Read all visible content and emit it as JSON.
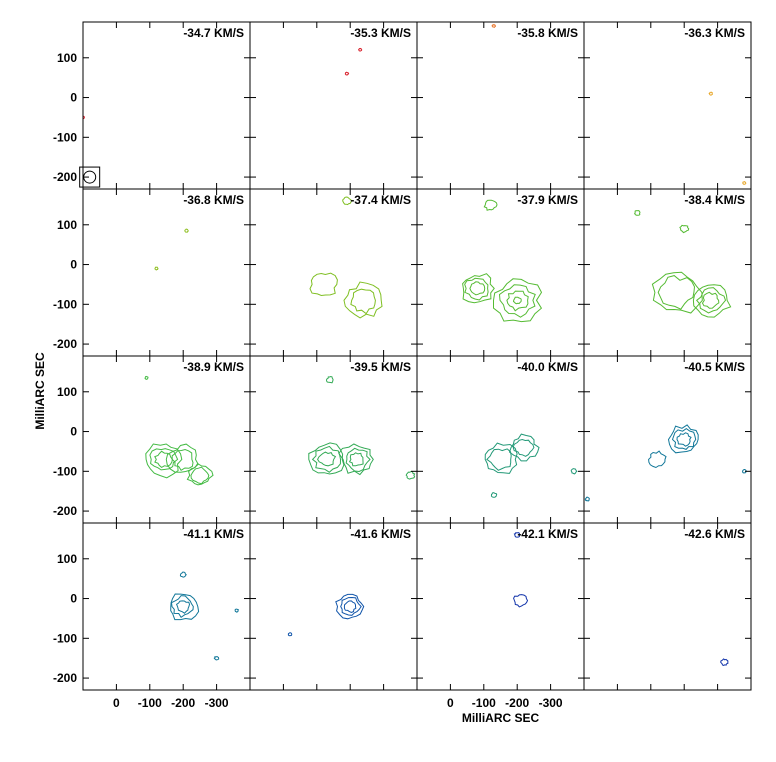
{
  "chart_data": {
    "type": "contour",
    "title": "",
    "xlabel": "MilliARC SEC",
    "ylabel": "MilliARC SEC",
    "xlim": [
      100,
      -400
    ],
    "ylim": [
      -230,
      190
    ],
    "xticks": [
      0,
      -100,
      -200,
      -300
    ],
    "xtick_labels": [
      "0",
      "-100",
      "-200",
      "-300"
    ],
    "yticks": [
      100,
      0,
      -100,
      -200
    ],
    "ytick_labels": [
      "100",
      "0",
      "-100",
      "-200"
    ],
    "grid": false,
    "legend": "none",
    "beam": {
      "x": 80,
      "y": -200,
      "size": 30
    },
    "panels": [
      {
        "velocity": "-34.7 KM/S",
        "color": "#d9232e",
        "features": [
          {
            "x": 100,
            "y": -50,
            "r": 4,
            "levels": 1
          }
        ]
      },
      {
        "velocity": "-35.3 KM/S",
        "color": "#d9232e",
        "features": [
          {
            "x": -190,
            "y": 60,
            "r": 4,
            "levels": 1
          },
          {
            "x": -230,
            "y": 120,
            "r": 3,
            "levels": 1
          }
        ]
      },
      {
        "velocity": "-35.8 KM/S",
        "color": "#e8762c",
        "features": [
          {
            "x": -130,
            "y": 180,
            "r": 3,
            "levels": 1
          }
        ]
      },
      {
        "velocity": "-36.3 KM/S",
        "color": "#e8a82c",
        "features": [
          {
            "x": -280,
            "y": 10,
            "r": 4,
            "levels": 1
          },
          {
            "x": -380,
            "y": -215,
            "r": 4,
            "levels": 1
          }
        ]
      },
      {
        "velocity": "-36.8 KM/S",
        "color": "#8fbf22",
        "features": [
          {
            "x": -210,
            "y": 85,
            "r": 5,
            "levels": 1
          },
          {
            "x": -120,
            "y": -10,
            "r": 3,
            "levels": 1
          }
        ]
      },
      {
        "velocity": "-37.4 KM/S",
        "color": "#7fbf22",
        "features": [
          {
            "x": -120,
            "y": -50,
            "r": 40,
            "levels": 1
          },
          {
            "x": -240,
            "y": -90,
            "r": 55,
            "levels": 2
          },
          {
            "x": -190,
            "y": 160,
            "r": 12,
            "levels": 1
          }
        ]
      },
      {
        "velocity": "-37.9 KM/S",
        "color": "#55bb33",
        "features": [
          {
            "x": -80,
            "y": -60,
            "r": 50,
            "levels": 3
          },
          {
            "x": -200,
            "y": -90,
            "r": 70,
            "levels": 4
          },
          {
            "x": -120,
            "y": 150,
            "r": 18,
            "levels": 1
          },
          {
            "x": -260,
            "y": 200,
            "r": 12,
            "levels": 1
          }
        ]
      },
      {
        "velocity": "-38.4 KM/S",
        "color": "#55bb33",
        "features": [
          {
            "x": -180,
            "y": -70,
            "r": 70,
            "levels": 2
          },
          {
            "x": -280,
            "y": -90,
            "r": 55,
            "levels": 3
          },
          {
            "x": -200,
            "y": 90,
            "r": 12,
            "levels": 1
          },
          {
            "x": -60,
            "y": 130,
            "r": 8,
            "levels": 1
          }
        ]
      },
      {
        "velocity": "-38.9 KM/S",
        "color": "#44bb44",
        "features": [
          {
            "x": -140,
            "y": -70,
            "r": 55,
            "levels": 3
          },
          {
            "x": -200,
            "y": -70,
            "r": 45,
            "levels": 2
          },
          {
            "x": -250,
            "y": -110,
            "r": 35,
            "levels": 2
          },
          {
            "x": -90,
            "y": 135,
            "r": 4,
            "levels": 1
          }
        ]
      },
      {
        "velocity": "-39.5 KM/S",
        "color": "#33aa55",
        "features": [
          {
            "x": -130,
            "y": -70,
            "r": 55,
            "levels": 3
          },
          {
            "x": -220,
            "y": -70,
            "r": 50,
            "levels": 3
          },
          {
            "x": -140,
            "y": 130,
            "r": 10,
            "levels": 1
          },
          {
            "x": -380,
            "y": -110,
            "r": 12,
            "levels": 1
          }
        ]
      },
      {
        "velocity": "-40.0 KM/S",
        "color": "#229977",
        "features": [
          {
            "x": -150,
            "y": -70,
            "r": 50,
            "levels": 2
          },
          {
            "x": -220,
            "y": -40,
            "r": 40,
            "levels": 2
          },
          {
            "x": -130,
            "y": -160,
            "r": 8,
            "levels": 1
          },
          {
            "x": -370,
            "y": -100,
            "r": 8,
            "levels": 1
          }
        ]
      },
      {
        "velocity": "-40.5 KM/S",
        "color": "#117799",
        "features": [
          {
            "x": -200,
            "y": -20,
            "r": 45,
            "levels": 3
          },
          {
            "x": -120,
            "y": -70,
            "r": 25,
            "levels": 1
          },
          {
            "x": 90,
            "y": -170,
            "r": 6,
            "levels": 1
          },
          {
            "x": -380,
            "y": -100,
            "r": 6,
            "levels": 1
          }
        ]
      },
      {
        "velocity": "-41.1 KM/S",
        "color": "#117799",
        "features": [
          {
            "x": -200,
            "y": -20,
            "r": 45,
            "levels": 3
          },
          {
            "x": -200,
            "y": 60,
            "r": 8,
            "levels": 1
          },
          {
            "x": -300,
            "y": -150,
            "r": 6,
            "levels": 1
          },
          {
            "x": -360,
            "y": -30,
            "r": 5,
            "levels": 1
          }
        ]
      },
      {
        "velocity": "-41.6 KM/S",
        "color": "#1155aa",
        "features": [
          {
            "x": -200,
            "y": -20,
            "r": 40,
            "levels": 3
          },
          {
            "x": -20,
            "y": -90,
            "r": 5,
            "levels": 1
          }
        ]
      },
      {
        "velocity": "-42.1 KM/S",
        "color": "#1133aa",
        "features": [
          {
            "x": -210,
            "y": -5,
            "r": 20,
            "levels": 1
          },
          {
            "x": -200,
            "y": 160,
            "r": 8,
            "levels": 1
          }
        ]
      },
      {
        "velocity": "-42.6 KM/S",
        "color": "#1133aa",
        "features": [
          {
            "x": -320,
            "y": -160,
            "r": 10,
            "levels": 1
          }
        ]
      }
    ]
  }
}
